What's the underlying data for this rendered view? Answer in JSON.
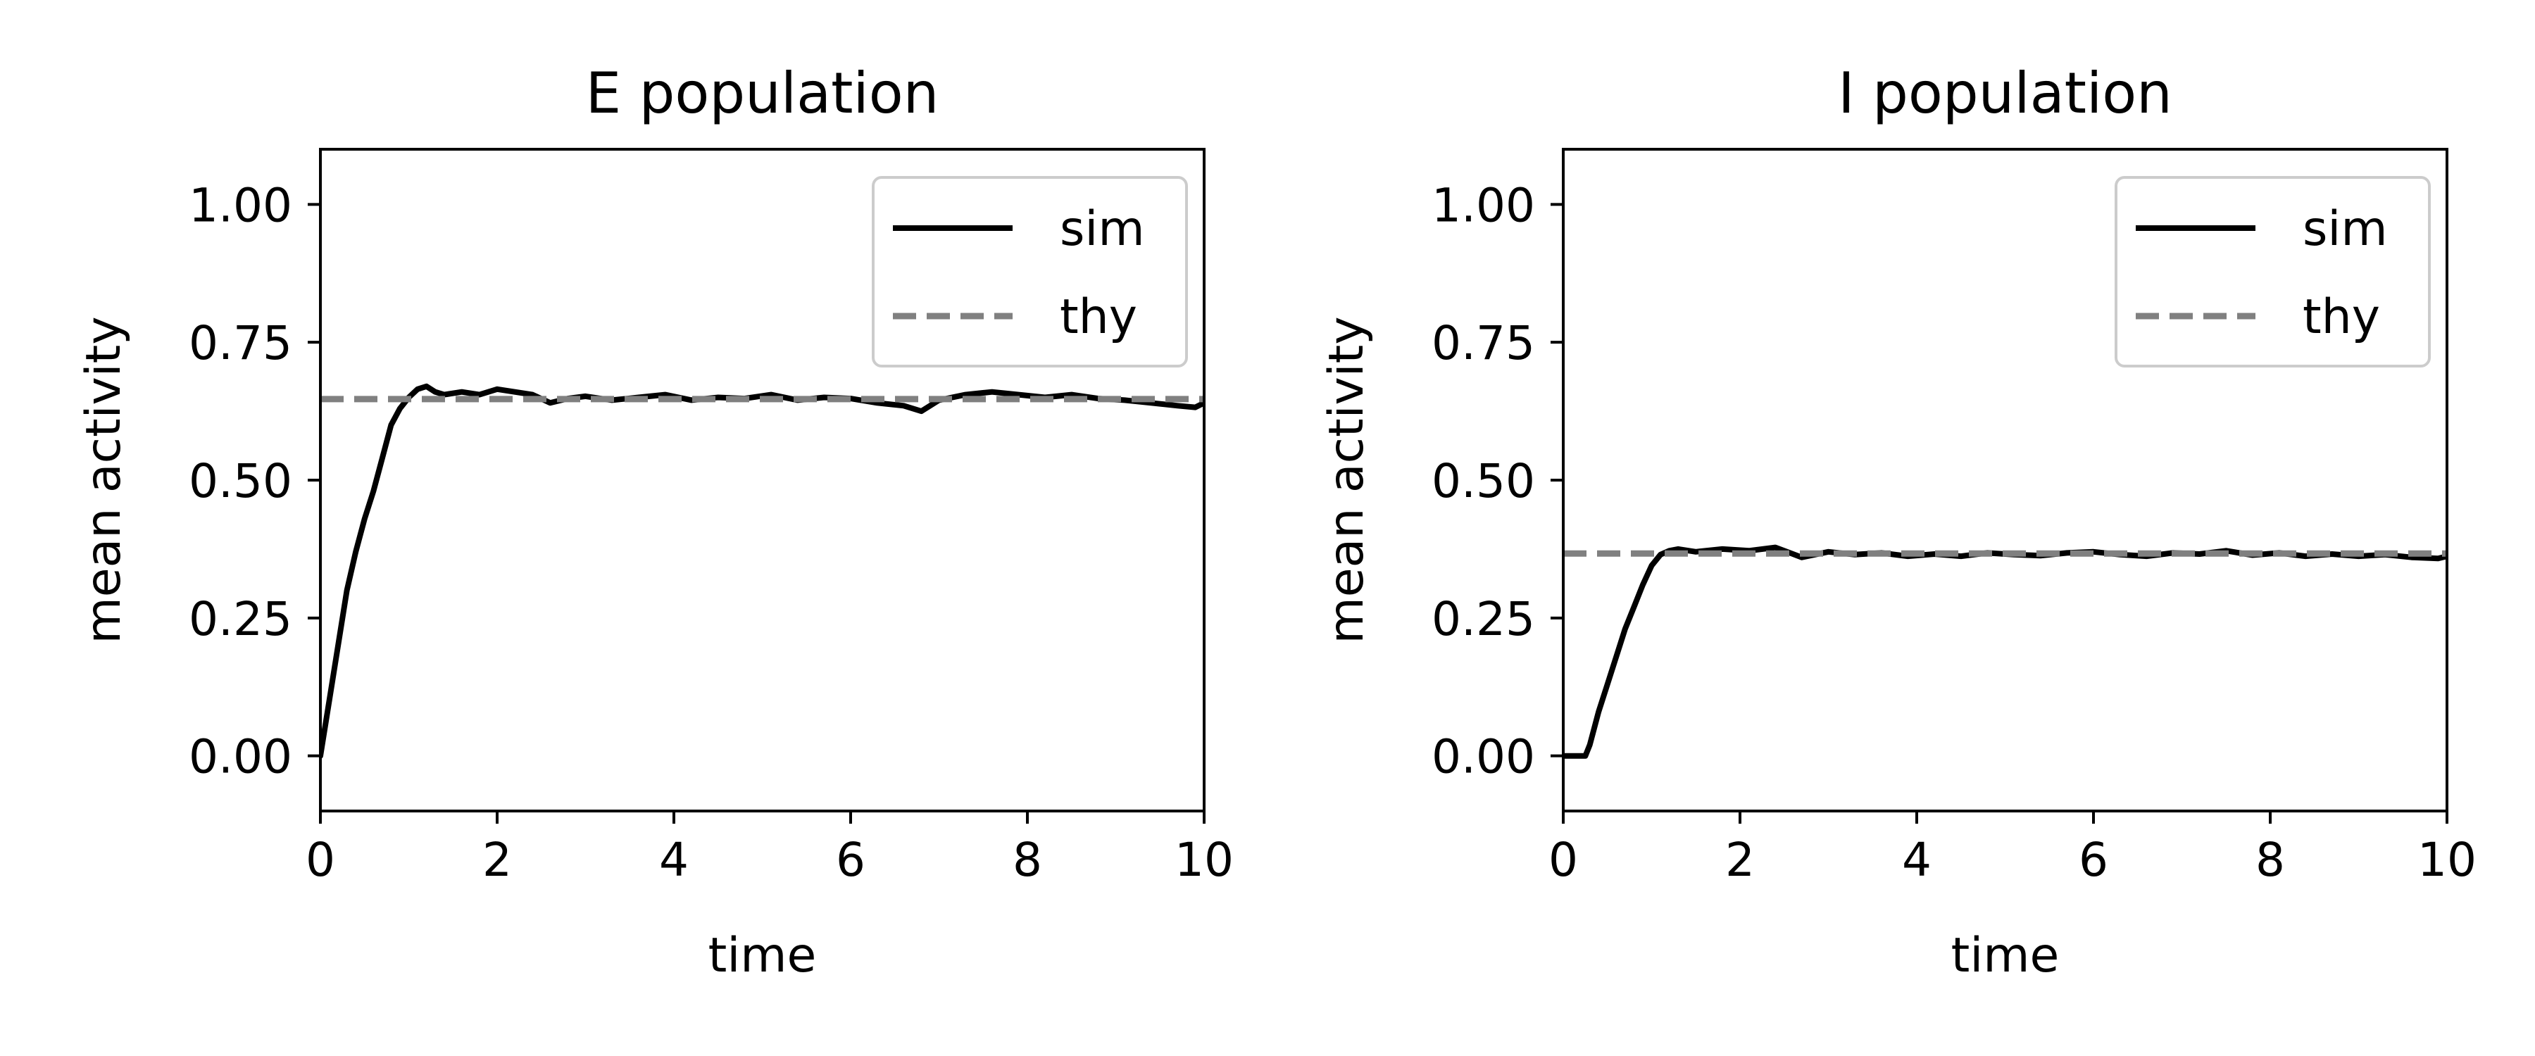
{
  "chart_data": [
    {
      "type": "line",
      "title": "E population",
      "xlabel": "time",
      "ylabel": "mean activity",
      "xlim": [
        0,
        10
      ],
      "ylim": [
        -0.1,
        1.1
      ],
      "xticks": [
        0,
        2,
        4,
        6,
        8,
        10
      ],
      "xtick_labels": [
        "0",
        "2",
        "4",
        "6",
        "8",
        "10"
      ],
      "yticks": [
        0.0,
        0.25,
        0.5,
        0.75,
        1.0
      ],
      "ytick_labels": [
        "0.00",
        "0.25",
        "0.50",
        "0.75",
        "1.00"
      ],
      "grid": false,
      "legend": "top-right",
      "series": [
        {
          "name": "sim",
          "style": "solid",
          "color": "#000000",
          "x": [
            0,
            0.1,
            0.2,
            0.3,
            0.4,
            0.5,
            0.6,
            0.7,
            0.8,
            0.9,
            1.0,
            1.1,
            1.2,
            1.3,
            1.4,
            1.6,
            1.8,
            2.0,
            2.2,
            2.4,
            2.6,
            2.8,
            3.0,
            3.3,
            3.6,
            3.9,
            4.2,
            4.5,
            4.8,
            5.1,
            5.4,
            5.7,
            6.0,
            6.3,
            6.6,
            6.8,
            7.0,
            7.3,
            7.6,
            7.9,
            8.2,
            8.5,
            8.8,
            9.1,
            9.4,
            9.7,
            9.9,
            10.0
          ],
          "y": [
            0.0,
            0.1,
            0.2,
            0.3,
            0.37,
            0.43,
            0.48,
            0.54,
            0.6,
            0.63,
            0.65,
            0.665,
            0.67,
            0.66,
            0.655,
            0.66,
            0.655,
            0.665,
            0.66,
            0.655,
            0.64,
            0.648,
            0.652,
            0.645,
            0.65,
            0.655,
            0.645,
            0.65,
            0.648,
            0.655,
            0.645,
            0.65,
            0.648,
            0.64,
            0.635,
            0.625,
            0.645,
            0.655,
            0.66,
            0.655,
            0.65,
            0.655,
            0.648,
            0.645,
            0.64,
            0.635,
            0.632,
            0.64
          ]
        },
        {
          "name": "thy",
          "style": "dashed",
          "color": "#808080",
          "x": [
            0,
            10
          ],
          "y": [
            0.647,
            0.647
          ]
        }
      ]
    },
    {
      "type": "line",
      "title": "I population",
      "xlabel": "time",
      "ylabel": "mean activity",
      "xlim": [
        0,
        10
      ],
      "ylim": [
        -0.1,
        1.1
      ],
      "xticks": [
        0,
        2,
        4,
        6,
        8,
        10
      ],
      "xtick_labels": [
        "0",
        "2",
        "4",
        "6",
        "8",
        "10"
      ],
      "yticks": [
        0.0,
        0.25,
        0.5,
        0.75,
        1.0
      ],
      "ytick_labels": [
        "0.00",
        "0.25",
        "0.50",
        "0.75",
        "1.00"
      ],
      "grid": false,
      "legend": "top-right",
      "series": [
        {
          "name": "sim",
          "style": "solid",
          "color": "#000000",
          "x": [
            0,
            0.15,
            0.25,
            0.3,
            0.4,
            0.5,
            0.6,
            0.7,
            0.8,
            0.9,
            1.0,
            1.1,
            1.2,
            1.3,
            1.5,
            1.8,
            2.1,
            2.4,
            2.7,
            3.0,
            3.3,
            3.6,
            3.9,
            4.2,
            4.5,
            4.8,
            5.1,
            5.4,
            5.7,
            6.0,
            6.3,
            6.6,
            6.9,
            7.2,
            7.5,
            7.8,
            8.1,
            8.4,
            8.7,
            9.0,
            9.3,
            9.6,
            9.9,
            10.0
          ],
          "y": [
            0.0,
            0.0,
            0.0,
            0.02,
            0.08,
            0.13,
            0.18,
            0.23,
            0.27,
            0.31,
            0.345,
            0.365,
            0.372,
            0.375,
            0.37,
            0.375,
            0.372,
            0.378,
            0.36,
            0.37,
            0.365,
            0.368,
            0.362,
            0.366,
            0.362,
            0.368,
            0.365,
            0.363,
            0.368,
            0.37,
            0.365,
            0.362,
            0.368,
            0.366,
            0.372,
            0.364,
            0.368,
            0.362,
            0.366,
            0.362,
            0.365,
            0.36,
            0.358,
            0.362
          ]
        },
        {
          "name": "thy",
          "style": "dashed",
          "color": "#808080",
          "x": [
            0,
            10
          ],
          "y": [
            0.367,
            0.367
          ]
        }
      ]
    }
  ]
}
